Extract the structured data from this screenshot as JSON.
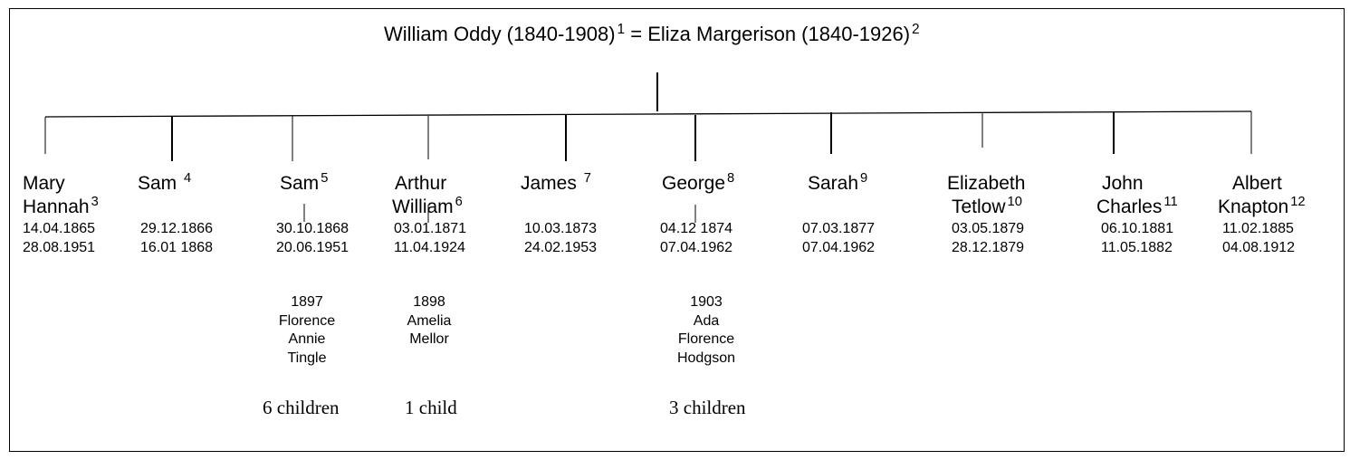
{
  "parents": {
    "father": "William Oddy (1840-1908)",
    "father_ref": "1",
    "joiner": "=",
    "mother": "Eliza Margerison (1840-1926)",
    "mother_ref": "2"
  },
  "children": [
    {
      "line1": "Mary",
      "line2": "Hannah",
      "ref": "3",
      "born": "14.04.1865",
      "died": "28.08.1951"
    },
    {
      "line1": "Sam",
      "line2": "",
      "ref": "4",
      "born": "29.12.1866",
      "died": "16.01 1868"
    },
    {
      "line1": "Sam",
      "line2": "",
      "ref": "5",
      "born": "30.10.1868",
      "died": "20.06.1951",
      "spouse": [
        "1897",
        "Florence",
        "Annie",
        "Tingle"
      ],
      "children_count": "6 children"
    },
    {
      "line1": "Arthur",
      "line2": "William",
      "ref": "6",
      "born": "03.01.1871",
      "died": "11.04.1924",
      "spouse": [
        "1898",
        "Amelia",
        "Mellor"
      ],
      "children_count": "1 child"
    },
    {
      "line1": "James",
      "line2": "",
      "ref": "7",
      "born": "10.03.1873",
      "died": "24.02.1953"
    },
    {
      "line1": "George",
      "line2": "",
      "ref": "8",
      "born": "04.12 1874",
      "died": "07.04.1962",
      "spouse": [
        "1903",
        "Ada",
        "Florence",
        "Hodgson"
      ],
      "children_count": "3 children"
    },
    {
      "line1": "Sarah",
      "line2": "",
      "ref": "9",
      "born": "07.03.1877",
      "died": "07.04.1962"
    },
    {
      "line1": "Elizabeth",
      "line2": "Tetlow",
      "ref": "10",
      "born": "03.05.1879",
      "died": "28.12.1879"
    },
    {
      "line1": "John",
      "line2": "Charles",
      "ref": "11",
      "born": "06.10.1881",
      "died": "11.05.1882"
    },
    {
      "line1": "Albert",
      "line2": "Knapton",
      "ref": "12",
      "born": "11.02.1885",
      "died": "04.08.1912"
    }
  ]
}
